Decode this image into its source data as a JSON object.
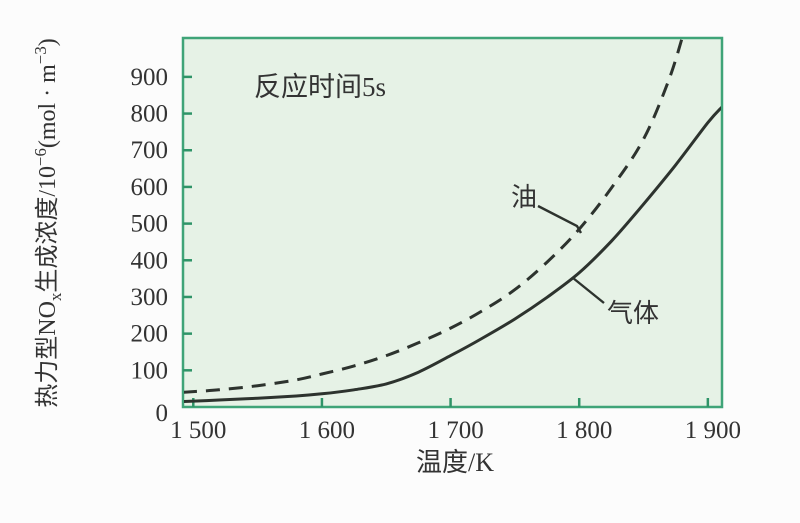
{
  "page": {
    "background": "#fcfcfc"
  },
  "colors": {
    "plot_background": "#e6f2e6",
    "plot_border": "#3fa478",
    "tick": "#2f9468",
    "curve": "#2d332e",
    "text": "#333333"
  },
  "chart_data": {
    "type": "line",
    "annotation": "反应时间5s",
    "xlabel": "温度/K",
    "ylabel": "热力型NOx生成浓度/10⁻⁶(mol·m⁻³)",
    "ylabel_parts": [
      {
        "text": "热力型NO",
        "script": "normal"
      },
      {
        "text": "x",
        "script": "sub"
      },
      {
        "text": "生成浓度/10",
        "script": "normal"
      },
      {
        "text": "−6",
        "script": "sup"
      },
      {
        "text": "(mol · m",
        "script": "normal"
      },
      {
        "text": "−3",
        "script": "sup"
      },
      {
        "text": ")",
        "script": "normal"
      }
    ],
    "x_range": [
      1492,
      1911
    ],
    "y_range": [
      0,
      1006
    ],
    "grid": false,
    "legend_position": "inline-annotations",
    "x_ticks": [
      {
        "value": 1500,
        "label": "1 500"
      },
      {
        "value": 1600,
        "label": "1 600"
      },
      {
        "value": 1700,
        "label": "1 700"
      },
      {
        "value": 1800,
        "label": "1 800"
      },
      {
        "value": 1900,
        "label": "1 900"
      }
    ],
    "y_ticks": [
      {
        "value": 0,
        "label": "0"
      },
      {
        "value": 100,
        "label": "100"
      },
      {
        "value": 200,
        "label": "200"
      },
      {
        "value": 300,
        "label": "300"
      },
      {
        "value": 400,
        "label": "400"
      },
      {
        "value": 500,
        "label": "500"
      },
      {
        "value": 600,
        "label": "600"
      },
      {
        "value": 700,
        "label": "700"
      },
      {
        "value": 800,
        "label": "800"
      },
      {
        "value": 900,
        "label": "900"
      }
    ],
    "series": [
      {
        "name": "油",
        "fuel": "oil",
        "line_style": "dashed",
        "points": [
          [
            1492,
            40
          ],
          [
            1520,
            47
          ],
          [
            1550,
            58
          ],
          [
            1580,
            74
          ],
          [
            1600,
            90
          ],
          [
            1625,
            112
          ],
          [
            1650,
            140
          ],
          [
            1675,
            175
          ],
          [
            1700,
            215
          ],
          [
            1725,
            263
          ],
          [
            1750,
            320
          ],
          [
            1775,
            395
          ],
          [
            1800,
            485
          ],
          [
            1825,
            597
          ],
          [
            1850,
            730
          ],
          [
            1870,
            895
          ],
          [
            1882,
            1030
          ]
        ]
      },
      {
        "name": "气体",
        "fuel": "gas",
        "line_style": "solid",
        "points": [
          [
            1492,
            15
          ],
          [
            1520,
            19
          ],
          [
            1550,
            24
          ],
          [
            1580,
            30
          ],
          [
            1600,
            36
          ],
          [
            1625,
            47
          ],
          [
            1650,
            63
          ],
          [
            1675,
            95
          ],
          [
            1700,
            140
          ],
          [
            1725,
            188
          ],
          [
            1750,
            240
          ],
          [
            1775,
            299
          ],
          [
            1800,
            366
          ],
          [
            1825,
            452
          ],
          [
            1850,
            553
          ],
          [
            1875,
            660
          ],
          [
            1900,
            775
          ],
          [
            1911,
            818
          ]
        ]
      }
    ]
  }
}
